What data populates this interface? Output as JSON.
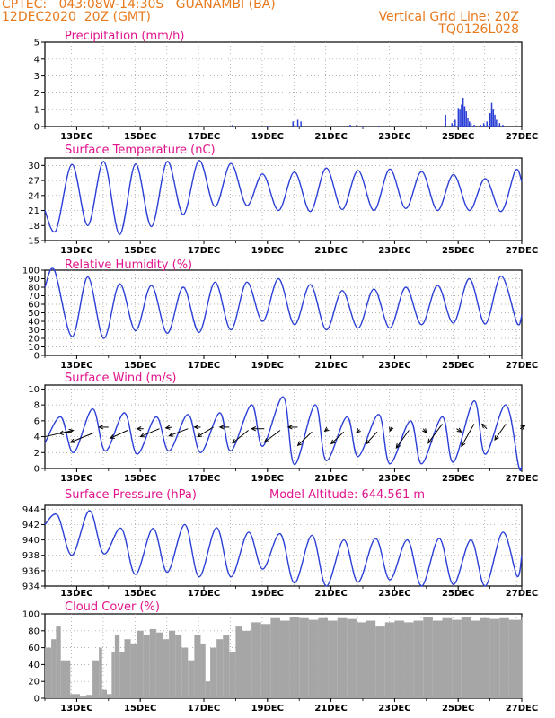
{
  "header": {
    "station": "CPTEC:   043:08W-14:30S   GUANAMBI (BA)",
    "date": "12DEC2020  20Z (GMT)",
    "grid_line": "Vertical Grid Line: 20Z",
    "code": "TQ0126L028"
  },
  "colors": {
    "header": "#e87a1e",
    "title": "#e0148c",
    "series": "#2b3fd6",
    "cloud": "#a6a6a6",
    "wind_arrow": "#000000"
  },
  "x_ticks": [
    "13DEC",
    "15DEC",
    "17DEC",
    "19DEC",
    "21DEC",
    "23DEC",
    "25DEC",
    "27DEC"
  ],
  "chart_data": [
    {
      "type": "bar",
      "title": "Precipitation (mm/h)",
      "ylim": [
        0,
        5
      ],
      "yticks": [
        "0",
        "1",
        "2",
        "3",
        "4",
        "5"
      ],
      "x": [
        17.9,
        19.0,
        19.8,
        19.95,
        20.05,
        21.6,
        21.8,
        22.0,
        22.5,
        24.6,
        24.8,
        24.9,
        25.0,
        25.05,
        25.1,
        25.15,
        25.2,
        25.25,
        25.3,
        25.35,
        25.4,
        25.5,
        25.7,
        25.8,
        25.9,
        26.0,
        26.05,
        26.1,
        26.15,
        26.2,
        26.3,
        26.4
      ],
      "values": [
        0.1,
        0.05,
        0.3,
        0.4,
        0.3,
        0.1,
        0.1,
        0.05,
        0.05,
        0.7,
        0.2,
        0.4,
        1.1,
        1.0,
        1.3,
        1.7,
        1.2,
        0.9,
        0.5,
        0.3,
        0.2,
        0.1,
        0.1,
        0.2,
        0.3,
        0.8,
        1.4,
        1.0,
        0.7,
        0.4,
        0.2,
        0.1
      ]
    },
    {
      "type": "line",
      "title": "Surface Temperature (nC)",
      "ylim": [
        15,
        31.5
      ],
      "yticks": [
        "15",
        "18",
        "21",
        "24",
        "27",
        "30"
      ],
      "minima": [
        {
          "x": 12.35,
          "y": 17.0
        },
        {
          "x": 13.35,
          "y": 18.0
        },
        {
          "x": 14.35,
          "y": 16.2
        },
        {
          "x": 15.35,
          "y": 17.8
        },
        {
          "x": 16.35,
          "y": 20.2
        },
        {
          "x": 17.35,
          "y": 21.8
        },
        {
          "x": 18.35,
          "y": 22.0
        },
        {
          "x": 19.35,
          "y": 21.0
        },
        {
          "x": 20.35,
          "y": 20.8
        },
        {
          "x": 21.35,
          "y": 21.2
        },
        {
          "x": 22.35,
          "y": 21.0
        },
        {
          "x": 23.35,
          "y": 21.4
        },
        {
          "x": 24.35,
          "y": 21.0
        },
        {
          "x": 25.35,
          "y": 21.0
        },
        {
          "x": 26.35,
          "y": 20.8
        }
      ],
      "maxima": [
        {
          "x": 12.85,
          "y": 30.2
        },
        {
          "x": 13.85,
          "y": 30.8
        },
        {
          "x": 14.85,
          "y": 30.3
        },
        {
          "x": 15.85,
          "y": 30.8
        },
        {
          "x": 16.85,
          "y": 31.0
        },
        {
          "x": 17.85,
          "y": 30.4
        },
        {
          "x": 18.85,
          "y": 28.3
        },
        {
          "x": 19.85,
          "y": 28.7
        },
        {
          "x": 20.85,
          "y": 29.5
        },
        {
          "x": 21.85,
          "y": 29.0
        },
        {
          "x": 22.85,
          "y": 29.3
        },
        {
          "x": 23.85,
          "y": 28.8
        },
        {
          "x": 24.85,
          "y": 28.2
        },
        {
          "x": 25.85,
          "y": 27.4
        },
        {
          "x": 26.8,
          "y": 29.0
        }
      ],
      "start": {
        "x": 12.0,
        "y": 21.0
      },
      "end": {
        "x": 27.0,
        "y": 26.8
      }
    },
    {
      "type": "line",
      "title": "Relative Humidity (%)",
      "ylim": [
        0,
        100
      ],
      "yticks": [
        "0",
        "10",
        "20",
        "30",
        "40",
        "50",
        "60",
        "70",
        "80",
        "90",
        "100"
      ],
      "minima": [
        {
          "x": 12.85,
          "y": 22
        },
        {
          "x": 13.85,
          "y": 20
        },
        {
          "x": 14.85,
          "y": 29
        },
        {
          "x": 15.85,
          "y": 26
        },
        {
          "x": 16.85,
          "y": 27
        },
        {
          "x": 17.85,
          "y": 30
        },
        {
          "x": 18.85,
          "y": 40
        },
        {
          "x": 19.85,
          "y": 36
        },
        {
          "x": 20.85,
          "y": 30
        },
        {
          "x": 21.85,
          "y": 32
        },
        {
          "x": 22.85,
          "y": 32
        },
        {
          "x": 23.85,
          "y": 36
        },
        {
          "x": 24.85,
          "y": 38
        },
        {
          "x": 25.85,
          "y": 37
        },
        {
          "x": 26.85,
          "y": 38
        }
      ],
      "maxima": [
        {
          "x": 12.3,
          "y": 100
        },
        {
          "x": 13.35,
          "y": 92
        },
        {
          "x": 14.35,
          "y": 84
        },
        {
          "x": 15.35,
          "y": 82
        },
        {
          "x": 16.35,
          "y": 80
        },
        {
          "x": 17.35,
          "y": 86
        },
        {
          "x": 18.35,
          "y": 86
        },
        {
          "x": 19.35,
          "y": 90
        },
        {
          "x": 20.35,
          "y": 83
        },
        {
          "x": 21.35,
          "y": 76
        },
        {
          "x": 22.35,
          "y": 78
        },
        {
          "x": 23.35,
          "y": 80
        },
        {
          "x": 24.35,
          "y": 82
        },
        {
          "x": 25.35,
          "y": 90
        },
        {
          "x": 26.35,
          "y": 93
        }
      ],
      "start": {
        "x": 12.0,
        "y": 80
      },
      "end": {
        "x": 27.0,
        "y": 47
      }
    },
    {
      "type": "line",
      "title": "Surface Wind (m/s)",
      "ylim": [
        0,
        10.5
      ],
      "yticks": [
        "0",
        "2",
        "4",
        "6",
        "8",
        "10"
      ],
      "minima": [
        {
          "x": 12.9,
          "y": 2.0
        },
        {
          "x": 13.9,
          "y": 2.2
        },
        {
          "x": 14.9,
          "y": 1.8
        },
        {
          "x": 15.9,
          "y": 2.2
        },
        {
          "x": 16.9,
          "y": 2.0
        },
        {
          "x": 17.85,
          "y": 2.2
        },
        {
          "x": 18.85,
          "y": 2.8
        },
        {
          "x": 19.85,
          "y": 0.5
        },
        {
          "x": 20.85,
          "y": 1.0
        },
        {
          "x": 21.85,
          "y": 1.5
        },
        {
          "x": 22.85,
          "y": 0.6
        },
        {
          "x": 23.85,
          "y": 0.6
        },
        {
          "x": 24.85,
          "y": 0.8
        },
        {
          "x": 25.85,
          "y": 1.8
        },
        {
          "x": 26.9,
          "y": 0.3
        }
      ],
      "maxima": [
        {
          "x": 12.5,
          "y": 6.5
        },
        {
          "x": 13.5,
          "y": 7.5
        },
        {
          "x": 14.5,
          "y": 7.0
        },
        {
          "x": 15.5,
          "y": 6.5
        },
        {
          "x": 16.5,
          "y": 6.8
        },
        {
          "x": 17.5,
          "y": 7.0
        },
        {
          "x": 18.5,
          "y": 8.0
        },
        {
          "x": 19.5,
          "y": 9.0
        },
        {
          "x": 20.5,
          "y": 8.0
        },
        {
          "x": 21.5,
          "y": 6.5
        },
        {
          "x": 22.5,
          "y": 6.8
        },
        {
          "x": 23.5,
          "y": 6.0
        },
        {
          "x": 24.5,
          "y": 6.5
        },
        {
          "x": 25.5,
          "y": 8.5
        },
        {
          "x": 26.5,
          "y": 8.0
        }
      ],
      "start": {
        "x": 12.0,
        "y": 3.2
      },
      "end": {
        "x": 27.0,
        "y": 0.3
      },
      "arrows": [
        {
          "x": 12.0,
          "y": 4.0,
          "dx": 0.9,
          "dy": 0.8
        },
        {
          "x": 12.8,
          "y": 4.6,
          "dx": -0.35,
          "dy": -0.2
        },
        {
          "x": 13.55,
          "y": 4.5,
          "dx": -0.75,
          "dy": -1.2
        },
        {
          "x": 14.0,
          "y": 5.2,
          "dx": -0.3,
          "dy": 0.0
        },
        {
          "x": 14.6,
          "y": 4.8,
          "dx": -0.55,
          "dy": -1.0
        },
        {
          "x": 15.1,
          "y": 5.0,
          "dx": -0.2,
          "dy": 0.0
        },
        {
          "x": 15.6,
          "y": 5.0,
          "dx": -0.6,
          "dy": -1.0
        },
        {
          "x": 16.0,
          "y": 5.2,
          "dx": -0.2,
          "dy": -0.1
        },
        {
          "x": 16.5,
          "y": 5.0,
          "dx": -0.6,
          "dy": -0.9
        },
        {
          "x": 16.9,
          "y": 5.2,
          "dx": -0.2,
          "dy": 0.0
        },
        {
          "x": 17.3,
          "y": 5.2,
          "dx": -0.5,
          "dy": -1.2
        },
        {
          "x": 17.8,
          "y": 5.2,
          "dx": -0.3,
          "dy": 0.0
        },
        {
          "x": 18.4,
          "y": 4.8,
          "dx": -0.5,
          "dy": -1.6
        },
        {
          "x": 18.9,
          "y": 5.0,
          "dx": -0.4,
          "dy": 0.0
        },
        {
          "x": 19.4,
          "y": 4.8,
          "dx": -0.5,
          "dy": -1.5
        },
        {
          "x": 19.95,
          "y": 5.2,
          "dx": -0.3,
          "dy": 0.0
        },
        {
          "x": 20.4,
          "y": 4.6,
          "dx": -0.45,
          "dy": -1.7
        },
        {
          "x": 20.9,
          "y": 5.0,
          "dx": -0.1,
          "dy": -0.3
        },
        {
          "x": 21.4,
          "y": 4.6,
          "dx": -0.4,
          "dy": -1.5
        },
        {
          "x": 21.9,
          "y": 4.9,
          "dx": -0.1,
          "dy": -0.4
        },
        {
          "x": 22.45,
          "y": 4.6,
          "dx": -0.35,
          "dy": -1.5
        },
        {
          "x": 22.9,
          "y": 5.2,
          "dx": -0.05,
          "dy": -0.5
        },
        {
          "x": 23.45,
          "y": 4.8,
          "dx": -0.4,
          "dy": -2.2
        },
        {
          "x": 23.9,
          "y": 5.0,
          "dx": 0.1,
          "dy": -0.5
        },
        {
          "x": 24.5,
          "y": 5.6,
          "dx": -0.45,
          "dy": -2.4
        },
        {
          "x": 24.95,
          "y": 5.0,
          "dx": 0.15,
          "dy": -0.4
        },
        {
          "x": 25.5,
          "y": 5.6,
          "dx": -0.4,
          "dy": -2.8
        },
        {
          "x": 25.9,
          "y": 5.0,
          "dx": -0.15,
          "dy": 0.6
        },
        {
          "x": 26.5,
          "y": 5.6,
          "dx": -0.35,
          "dy": -2.0
        },
        {
          "x": 26.95,
          "y": 5.0,
          "dx": 0.15,
          "dy": 0.4
        }
      ]
    },
    {
      "type": "line",
      "title": "Surface Pressure (hPa)",
      "subtitle": "Model Altitude: 644.561  m",
      "ylim": [
        934,
        944.5
      ],
      "yticks": [
        "934",
        "936",
        "938",
        "940",
        "942",
        "944"
      ],
      "minima": [
        {
          "x": 12.85,
          "y": 938.0
        },
        {
          "x": 13.85,
          "y": 938.2
        },
        {
          "x": 14.85,
          "y": 935.5
        },
        {
          "x": 15.85,
          "y": 935.8
        },
        {
          "x": 16.85,
          "y": 935.2
        },
        {
          "x": 17.85,
          "y": 935.2
        },
        {
          "x": 18.85,
          "y": 936.2
        },
        {
          "x": 19.85,
          "y": 934.4
        },
        {
          "x": 20.85,
          "y": 934.0
        },
        {
          "x": 21.85,
          "y": 934.5
        },
        {
          "x": 22.85,
          "y": 934.8
        },
        {
          "x": 23.85,
          "y": 934.0
        },
        {
          "x": 24.85,
          "y": 934.2
        },
        {
          "x": 25.85,
          "y": 934.0
        },
        {
          "x": 26.85,
          "y": 935.3
        }
      ],
      "maxima": [
        {
          "x": 12.4,
          "y": 943.2
        },
        {
          "x": 13.4,
          "y": 943.8
        },
        {
          "x": 14.4,
          "y": 941.5
        },
        {
          "x": 15.4,
          "y": 941.5
        },
        {
          "x": 16.4,
          "y": 942.0
        },
        {
          "x": 17.4,
          "y": 941.6
        },
        {
          "x": 18.4,
          "y": 941.0
        },
        {
          "x": 19.4,
          "y": 940.8
        },
        {
          "x": 20.4,
          "y": 940.6
        },
        {
          "x": 21.4,
          "y": 940.0
        },
        {
          "x": 22.4,
          "y": 940.2
        },
        {
          "x": 23.4,
          "y": 940.0
        },
        {
          "x": 24.4,
          "y": 940.2
        },
        {
          "x": 25.4,
          "y": 940.0
        },
        {
          "x": 26.4,
          "y": 941.0
        }
      ],
      "start": {
        "x": 12.0,
        "y": 942.0
      },
      "end": {
        "x": 27.0,
        "y": 938.0
      }
    },
    {
      "type": "area",
      "title": "Cloud Cover (%)",
      "ylim": [
        0,
        100
      ],
      "yticks": [
        "0",
        "20",
        "40",
        "60",
        "80",
        "100"
      ],
      "x": [
        12.0,
        12.2,
        12.35,
        12.5,
        12.8,
        13.1,
        13.3,
        13.5,
        13.7,
        13.8,
        13.95,
        14.1,
        14.2,
        14.35,
        14.5,
        14.7,
        14.9,
        15.1,
        15.3,
        15.5,
        15.7,
        15.9,
        16.1,
        16.3,
        16.5,
        16.7,
        16.9,
        17.05,
        17.2,
        17.4,
        17.6,
        17.8,
        18.0,
        18.2,
        18.5,
        18.8,
        19.1,
        19.4,
        19.7,
        20.0,
        20.3,
        20.6,
        20.9,
        21.2,
        21.5,
        21.8,
        22.1,
        22.4,
        22.7,
        23.0,
        23.3,
        23.6,
        23.9,
        24.2,
        24.5,
        24.8,
        25.1,
        25.4,
        25.7,
        26.0,
        26.3,
        26.6,
        27.0
      ],
      "values": [
        60,
        70,
        85,
        45,
        5,
        2,
        4,
        45,
        60,
        10,
        5,
        55,
        75,
        55,
        70,
        65,
        80,
        75,
        82,
        78,
        70,
        80,
        75,
        60,
        45,
        75,
        65,
        20,
        60,
        70,
        75,
        55,
        85,
        80,
        90,
        88,
        95,
        92,
        96,
        95,
        93,
        95,
        92,
        95,
        94,
        90,
        92,
        85,
        90,
        92,
        90,
        92,
        96,
        92,
        95,
        93,
        96,
        92,
        95,
        94,
        95,
        93,
        96
      ]
    }
  ]
}
